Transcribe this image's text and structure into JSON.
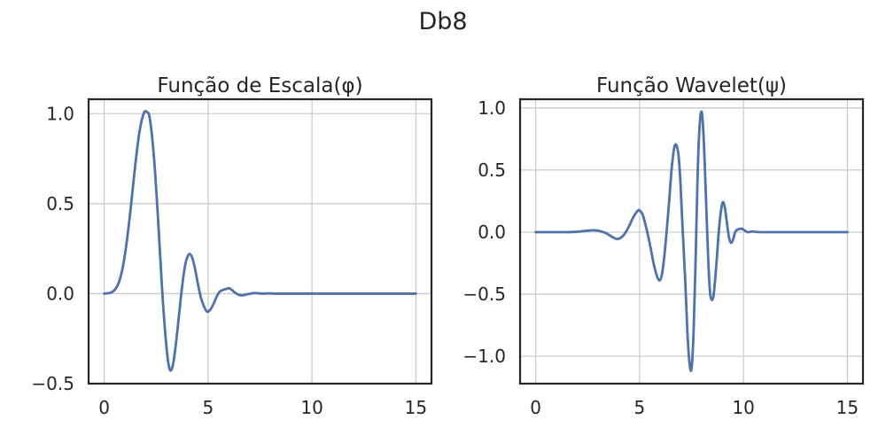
{
  "figure": {
    "title": "Db8"
  },
  "chart_data": [
    {
      "type": "line",
      "title": "Função de Escala(φ)",
      "xlabel": "",
      "ylabel": "",
      "xlim": [
        -0.75,
        15.75
      ],
      "ylim": [
        -0.5,
        1.08
      ],
      "xticks": [
        0,
        5,
        10,
        15
      ],
      "xtick_labels": [
        "0",
        "5",
        "10",
        "15"
      ],
      "yticks": [
        -0.5,
        0.0,
        0.5,
        1.0
      ],
      "ytick_labels": [
        "−0.5",
        "0.0",
        "0.5",
        "1.0"
      ],
      "grid": true,
      "color": "#4c72b0",
      "series": [
        {
          "x": [
            0,
            0.3,
            0.5,
            0.7,
            0.9,
            1.1,
            1.3,
            1.5,
            1.7,
            1.9,
            2.05,
            2.2,
            2.4,
            2.6,
            2.8,
            3.0,
            3.15,
            3.3,
            3.45,
            3.6,
            3.75,
            3.9,
            4.05,
            4.2,
            4.35,
            4.5,
            4.65,
            4.8,
            4.95,
            5.1,
            5.25,
            5.4,
            5.55,
            5.7,
            5.85,
            6.0,
            6.15,
            6.3,
            6.45,
            6.6,
            6.75,
            6.9,
            7.05,
            7.2,
            7.4,
            7.6,
            7.8,
            8.0,
            8.3,
            8.6,
            9,
            10,
            11,
            12,
            13,
            14,
            15
          ],
          "y": [
            0,
            0.005,
            0.02,
            0.06,
            0.15,
            0.3,
            0.5,
            0.72,
            0.9,
            1.0,
            1.01,
            0.97,
            0.75,
            0.4,
            0.0,
            -0.3,
            -0.42,
            -0.4,
            -0.28,
            -0.12,
            0.04,
            0.16,
            0.215,
            0.21,
            0.15,
            0.06,
            -0.02,
            -0.07,
            -0.1,
            -0.09,
            -0.06,
            -0.02,
            0.01,
            0.02,
            0.025,
            0.03,
            0.02,
            0.005,
            -0.005,
            -0.01,
            -0.007,
            -0.003,
            0.0,
            0.003,
            0.002,
            0.0,
            0.001,
            0.001,
            0,
            0,
            0,
            0,
            0,
            0,
            0,
            0,
            0
          ]
        }
      ]
    },
    {
      "type": "line",
      "title": "Função Wavelet(ψ)",
      "xlabel": "",
      "ylabel": "",
      "xlim": [
        -0.75,
        15.75
      ],
      "ylim": [
        -1.22,
        1.07
      ],
      "xticks": [
        0,
        5,
        10,
        15
      ],
      "xtick_labels": [
        "0",
        "5",
        "10",
        "15"
      ],
      "yticks": [
        -1.0,
        -0.5,
        0.0,
        0.5,
        1.0
      ],
      "ytick_labels": [
        "−1.0",
        "−0.5",
        "0.0",
        "0.5",
        "1.0"
      ],
      "grid": true,
      "color": "#4c72b0",
      "series": [
        {
          "x": [
            0,
            0.5,
            1,
            1.5,
            2,
            2.4,
            2.8,
            3.1,
            3.4,
            3.7,
            3.9,
            4.1,
            4.3,
            4.5,
            4.7,
            4.9,
            5.0,
            5.15,
            5.3,
            5.5,
            5.7,
            5.9,
            6.05,
            6.2,
            6.4,
            6.55,
            6.7,
            6.85,
            6.95,
            7.05,
            7.2,
            7.3,
            7.4,
            7.5,
            7.6,
            7.7,
            7.8,
            7.9,
            8.0,
            8.1,
            8.2,
            8.3,
            8.4,
            8.55,
            8.7,
            8.8,
            8.9,
            9.0,
            9.1,
            9.2,
            9.3,
            9.4,
            9.5,
            9.6,
            9.7,
            9.8,
            9.9,
            10.0,
            10.2,
            10.4,
            10.6,
            10.8,
            11,
            11.5,
            12,
            13,
            14,
            15
          ],
          "y": [
            0,
            0,
            0,
            0,
            0.003,
            0.01,
            0.015,
            0.008,
            -0.01,
            -0.04,
            -0.055,
            -0.045,
            -0.01,
            0.05,
            0.12,
            0.17,
            0.175,
            0.14,
            0.05,
            -0.1,
            -0.27,
            -0.38,
            -0.36,
            -0.18,
            0.2,
            0.52,
            0.7,
            0.65,
            0.45,
            0.1,
            -0.4,
            -0.8,
            -1.05,
            -1.1,
            -0.8,
            -0.2,
            0.5,
            0.88,
            0.96,
            0.7,
            0.25,
            -0.2,
            -0.5,
            -0.52,
            -0.25,
            -0.02,
            0.15,
            0.24,
            0.2,
            0.08,
            -0.04,
            -0.085,
            -0.06,
            0.0,
            0.02,
            0.025,
            0.028,
            0.02,
            0.0,
            0.005,
            0.002,
            0.0,
            0,
            0,
            0,
            0,
            0,
            0
          ]
        }
      ]
    }
  ]
}
